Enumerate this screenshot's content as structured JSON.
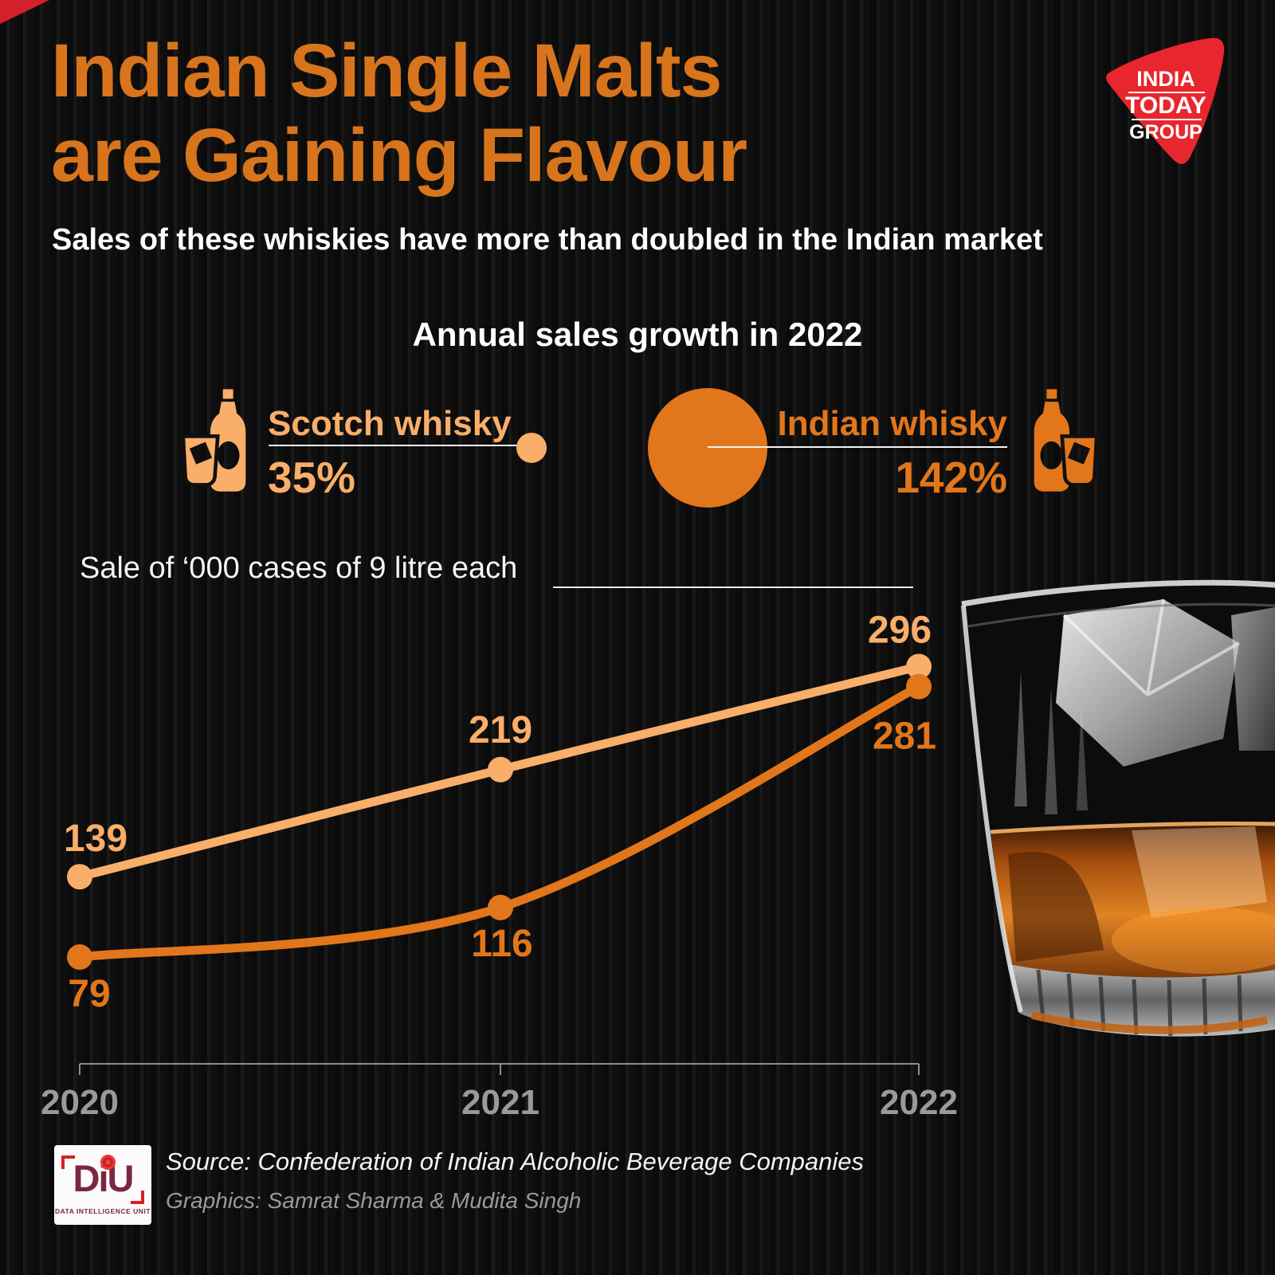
{
  "header": {
    "title_line1": "Indian Single Malts",
    "title_line2": "are Gaining Flavour",
    "subtitle": "Sales of these whiskies have more than doubled in the Indian market"
  },
  "brand": {
    "lines": [
      "INDIA",
      "TODAY",
      "GROUP"
    ]
  },
  "growth": {
    "heading": "Annual sales growth in 2022",
    "scotch": {
      "label": "Scotch whisky",
      "value": "35%"
    },
    "indian": {
      "label": "Indian whisky",
      "value": "142%"
    }
  },
  "chart_heading": "Sale of ‘000 cases of 9 litre each",
  "chart_data": {
    "type": "line",
    "title": "Sale of ‘000 cases of 9 litre each",
    "categories": [
      "2020",
      "2021",
      "2022"
    ],
    "series": [
      {
        "name": "Scotch whisky",
        "values": [
          139,
          219,
          296
        ],
        "color": "#f9ae6a"
      },
      {
        "name": "Indian whisky",
        "values": [
          79,
          116,
          281
        ],
        "color": "#e2761b"
      }
    ],
    "xlabel": "",
    "ylabel": "'000 cases of 9 litre each",
    "ylim": [
      0,
      320
    ],
    "grid": false,
    "legend_position": "none",
    "data_labels": true
  },
  "footer": {
    "diu": {
      "name": "DiU",
      "tagline": "DATA INTELLIGENCE UNIT"
    },
    "source": "Source: Confederation of Indian Alcoholic Beverage Companies",
    "credits": "Graphics: Samrat Sharma & Mudita Singh"
  },
  "colors": {
    "accent_orange": "#d8741c",
    "light_orange": "#f9ae6a",
    "dark_orange": "#e2761b",
    "brand_red": "#e8262d",
    "axis_grey": "#8d8d8d",
    "background": "#101010"
  }
}
